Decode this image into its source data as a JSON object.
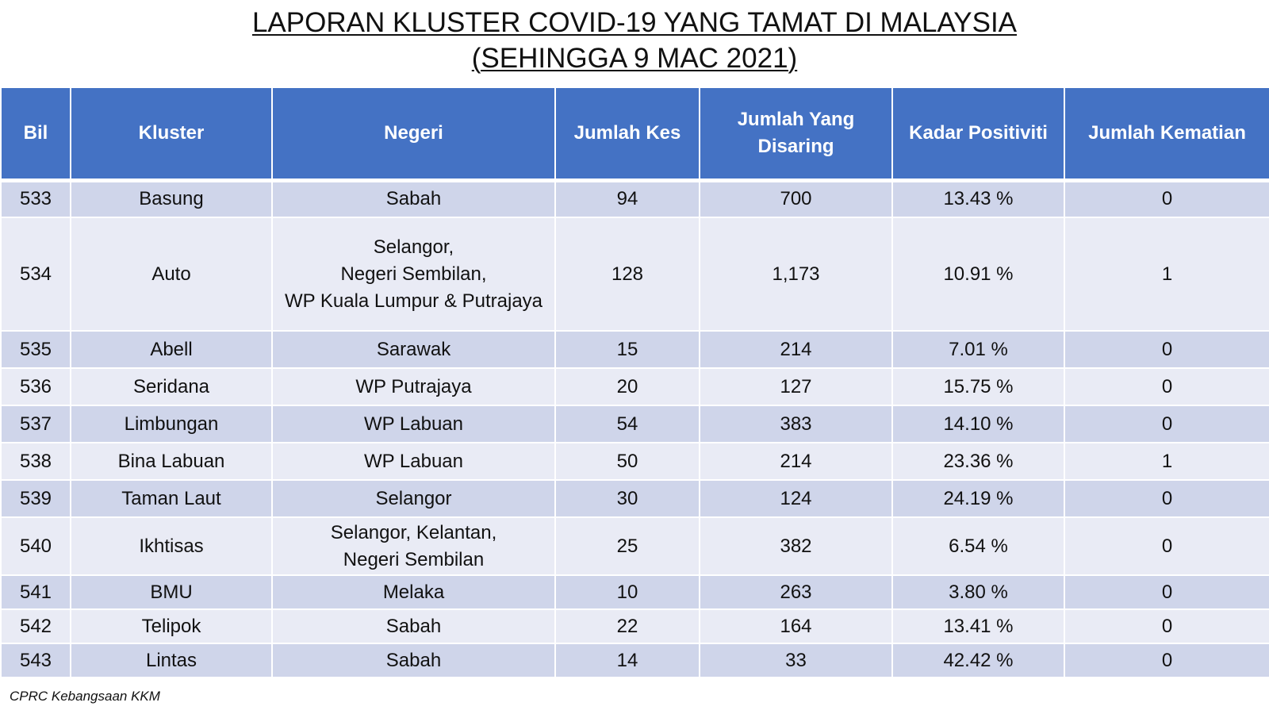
{
  "title": {
    "line1": "LAPORAN KLUSTER COVID-19 YANG TAMAT DI MALAYSIA",
    "line2": "(SEHINGGA 9 MAC 2021)"
  },
  "table": {
    "headers": [
      "Bil",
      "Kluster",
      "Negeri",
      "Jumlah Kes",
      "Jumlah Yang Disaring",
      "Kadar Positiviti",
      "Jumlah Kematian"
    ],
    "rows": [
      {
        "bil": "533",
        "kluster": "Basung",
        "negeri": [
          "Sabah"
        ],
        "kes": "94",
        "disaring": "700",
        "positiviti": "13.43 %",
        "kematian": "0"
      },
      {
        "bil": "534",
        "kluster": "Auto",
        "negeri": [
          "Selangor,",
          "Negeri Sembilan,",
          "WP Kuala Lumpur & Putrajaya"
        ],
        "kes": "128",
        "disaring": "1,173",
        "positiviti": "10.91 %",
        "kematian": "1"
      },
      {
        "bil": "535",
        "kluster": "Abell",
        "negeri": [
          "Sarawak"
        ],
        "kes": "15",
        "disaring": "214",
        "positiviti": "7.01 %",
        "kematian": "0"
      },
      {
        "bil": "536",
        "kluster": "Seridana",
        "negeri": [
          "WP Putrajaya"
        ],
        "kes": "20",
        "disaring": "127",
        "positiviti": "15.75 %",
        "kematian": "0"
      },
      {
        "bil": "537",
        "kluster": "Limbungan",
        "negeri": [
          "WP Labuan"
        ],
        "kes": "54",
        "disaring": "383",
        "positiviti": "14.10 %",
        "kematian": "0"
      },
      {
        "bil": "538",
        "kluster": "Bina Labuan",
        "negeri": [
          "WP Labuan"
        ],
        "kes": "50",
        "disaring": "214",
        "positiviti": "23.36 %",
        "kematian": "1"
      },
      {
        "bil": "539",
        "kluster": "Taman Laut",
        "negeri": [
          "Selangor"
        ],
        "kes": "30",
        "disaring": "124",
        "positiviti": "24.19 %",
        "kematian": "0"
      },
      {
        "bil": "540",
        "kluster": "Ikhtisas",
        "negeri": [
          "Selangor, Kelantan,",
          "Negeri Sembilan"
        ],
        "kes": "25",
        "disaring": "382",
        "positiviti": "6.54 %",
        "kematian": "0"
      },
      {
        "bil": "541",
        "kluster": "BMU",
        "negeri": [
          "Melaka"
        ],
        "kes": "10",
        "disaring": "263",
        "positiviti": "3.80 %",
        "kematian": "0"
      },
      {
        "bil": "542",
        "kluster": "Telipok",
        "negeri": [
          "Sabah"
        ],
        "kes": "22",
        "disaring": "164",
        "positiviti": "13.41 %",
        "kematian": "0"
      },
      {
        "bil": "543",
        "kluster": "Lintas",
        "negeri": [
          "Sabah"
        ],
        "kes": "14",
        "disaring": "33",
        "positiviti": "42.42 %",
        "kematian": "0"
      }
    ]
  },
  "source": "CPRC Kebangsaan KKM",
  "colors": {
    "header_bg": "#4472c4",
    "row_dark": "#cfd5ea",
    "row_light": "#e9ebf5"
  }
}
